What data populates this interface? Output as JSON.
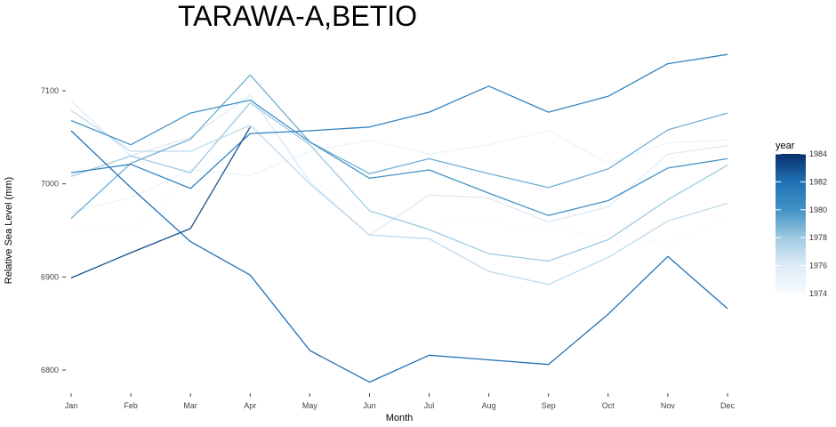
{
  "chart_data": {
    "type": "line",
    "title": "TARAWA-A,BETIO",
    "xlabel": "Month",
    "ylabel": "Relative Sea Level (mm)",
    "categories": [
      "Jan",
      "Feb",
      "Mar",
      "Apr",
      "May",
      "Jun",
      "Jul",
      "Aug",
      "Sep",
      "Oct",
      "Nov",
      "Dec"
    ],
    "ylim": [
      6776,
      7146
    ],
    "yticks": [
      6800,
      6900,
      7000,
      7100
    ],
    "grid": false,
    "legend": {
      "title": "year",
      "position": "right",
      "range": [
        1974,
        1984
      ],
      "ticks": [
        1974,
        1976,
        1978,
        1980,
        1982,
        1984
      ]
    },
    "series": [
      {
        "year": 1974,
        "values": [
          6949,
          6949,
          7010,
          7090,
          7005,
          6966,
          6956,
          6959,
          6951,
          6944,
          6936,
          6964
        ]
      },
      {
        "year": 1975,
        "values": [
          6970,
          6985,
          7015,
          7009,
          7035,
          7047,
          7032,
          7042,
          7057,
          7022,
          7044,
          7047
        ]
      },
      {
        "year": 1976,
        "values": [
          7089,
          7030,
          7050,
          7095,
          7002,
          6945,
          6988,
          6985,
          6959,
          6975,
          7032,
          7041
        ]
      },
      {
        "year": 1977,
        "values": [
          7079,
          7035,
          7035,
          7063,
          7000,
          6945,
          6941,
          6906,
          6892,
          6921,
          6960,
          6979
        ]
      },
      {
        "year": 1978,
        "values": [
          7008,
          7030,
          7012,
          7087,
          7042,
          6971,
          6951,
          6925,
          6917,
          6940,
          6983,
          7020
        ]
      },
      {
        "year": 1979,
        "values": [
          6963,
          7022,
          7048,
          7117,
          7045,
          7011,
          7027,
          7011,
          6996,
          7016,
          7058,
          7076
        ]
      },
      {
        "year": 1980,
        "values": [
          7068,
          7042,
          7076,
          7090,
          7045,
          7006,
          7015,
          6990,
          6966,
          6982,
          7017,
          7027
        ]
      },
      {
        "year": 1981,
        "values": [
          7012,
          7021,
          6995,
          7054,
          7057,
          7061,
          7077,
          7105,
          7077,
          7094,
          7129,
          7139
        ]
      },
      {
        "year": 1982,
        "values": [
          7057,
          6996,
          6938,
          6902,
          6821,
          6787,
          6816,
          6811,
          6806,
          6860,
          6922,
          6866
        ]
      },
      {
        "year": 1983,
        "values": [
          6899,
          6926,
          6952,
          7061,
          null,
          null,
          null,
          null,
          null,
          null,
          null,
          null
        ]
      }
    ]
  }
}
